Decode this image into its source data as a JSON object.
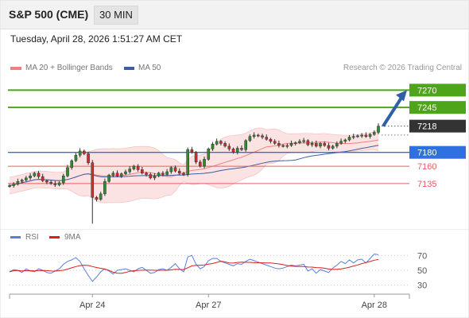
{
  "header": {
    "instrument": "S&P 500 (CME)",
    "timeframe": "30 MIN"
  },
  "datetime": "Tuesday, April 28, 2026 1:51:27 AM CET",
  "legend": {
    "bollinger": "MA 20 + Bollinger Bands",
    "ma50": "MA 50"
  },
  "credit": "Research © 2026 Trading Central",
  "rsi_legend": {
    "rsi": "RSI",
    "ma": "9MA"
  },
  "colors": {
    "resistance": "#4fa51a",
    "support": "#2f6fe0",
    "pivot": "#333333",
    "minor_support": "#e06060",
    "bollinger": "#f08080",
    "ma50": "#3c5fa0",
    "rsi": "#5a7fdb",
    "rsi_ma": "#d62020",
    "arrow": "#2f5fa8",
    "candle_up": "#2e8b2e",
    "candle_down": "#c83030"
  },
  "chart_data": {
    "type": "line",
    "title": "",
    "x_ticks": [
      "Apr 24",
      "Apr 27",
      "Apr 28"
    ],
    "price": {
      "ylim": [
        7075,
        7290
      ],
      "close": [
        7132,
        7134,
        7138,
        7140,
        7143,
        7146,
        7150,
        7145,
        7139,
        7137,
        7135,
        7133,
        7136,
        7146,
        7158,
        7168,
        7176,
        7182,
        7178,
        7165,
        7115,
        7112,
        7120,
        7138,
        7147,
        7150,
        7146,
        7149,
        7152,
        7156,
        7160,
        7155,
        7150,
        7148,
        7143,
        7146,
        7150,
        7148,
        7152,
        7158,
        7153,
        7150,
        7148,
        7184,
        7180,
        7166,
        7160,
        7170,
        7185,
        7192,
        7196,
        7193,
        7189,
        7185,
        7180,
        7186,
        7184,
        7197,
        7203,
        7205,
        7204,
        7202,
        7199,
        7196,
        7193,
        7190,
        7189,
        7190,
        7193,
        7194,
        7196,
        7197,
        7191,
        7193,
        7189,
        7193,
        7190,
        7186,
        7189,
        7193,
        7196,
        7198,
        7202,
        7203,
        7204,
        7205,
        7203,
        7206,
        7209,
        7218
      ],
      "levels": [
        {
          "value": 7270,
          "label": "7270",
          "kind": "resistance"
        },
        {
          "value": 7245,
          "label": "7245",
          "kind": "resistance"
        },
        {
          "value": 7218,
          "label": "7218",
          "kind": "pivot"
        },
        {
          "value": 7180,
          "label": "7180",
          "kind": "support"
        },
        {
          "value": 7160,
          "label": "7160",
          "kind": "minor_support"
        },
        {
          "value": 7135,
          "label": "7135",
          "kind": "minor_support"
        }
      ],
      "forecast_arrow": {
        "from": 7218,
        "to": 7270
      }
    },
    "rsi": {
      "ylim": [
        20,
        80
      ],
      "ticks": [
        70,
        50,
        30
      ],
      "values": [
        48,
        51,
        50,
        47,
        52,
        49,
        48,
        52,
        50,
        47,
        46,
        49,
        52,
        58,
        62,
        64,
        67,
        62,
        52,
        43,
        35,
        41,
        48,
        52,
        49,
        45,
        50,
        51,
        52,
        50,
        48,
        52,
        54,
        50,
        46,
        47,
        51,
        52,
        50,
        54,
        59,
        52,
        48,
        68,
        70,
        58,
        52,
        55,
        63,
        66,
        66,
        62,
        60,
        58,
        56,
        59,
        58,
        62,
        65,
        63,
        61,
        59,
        57,
        55,
        53,
        52,
        53,
        55,
        57,
        56,
        57,
        58,
        49,
        52,
        46,
        51,
        49,
        47,
        53,
        57,
        62,
        59,
        64,
        60,
        64,
        65,
        60,
        66,
        72,
        71
      ]
    }
  }
}
